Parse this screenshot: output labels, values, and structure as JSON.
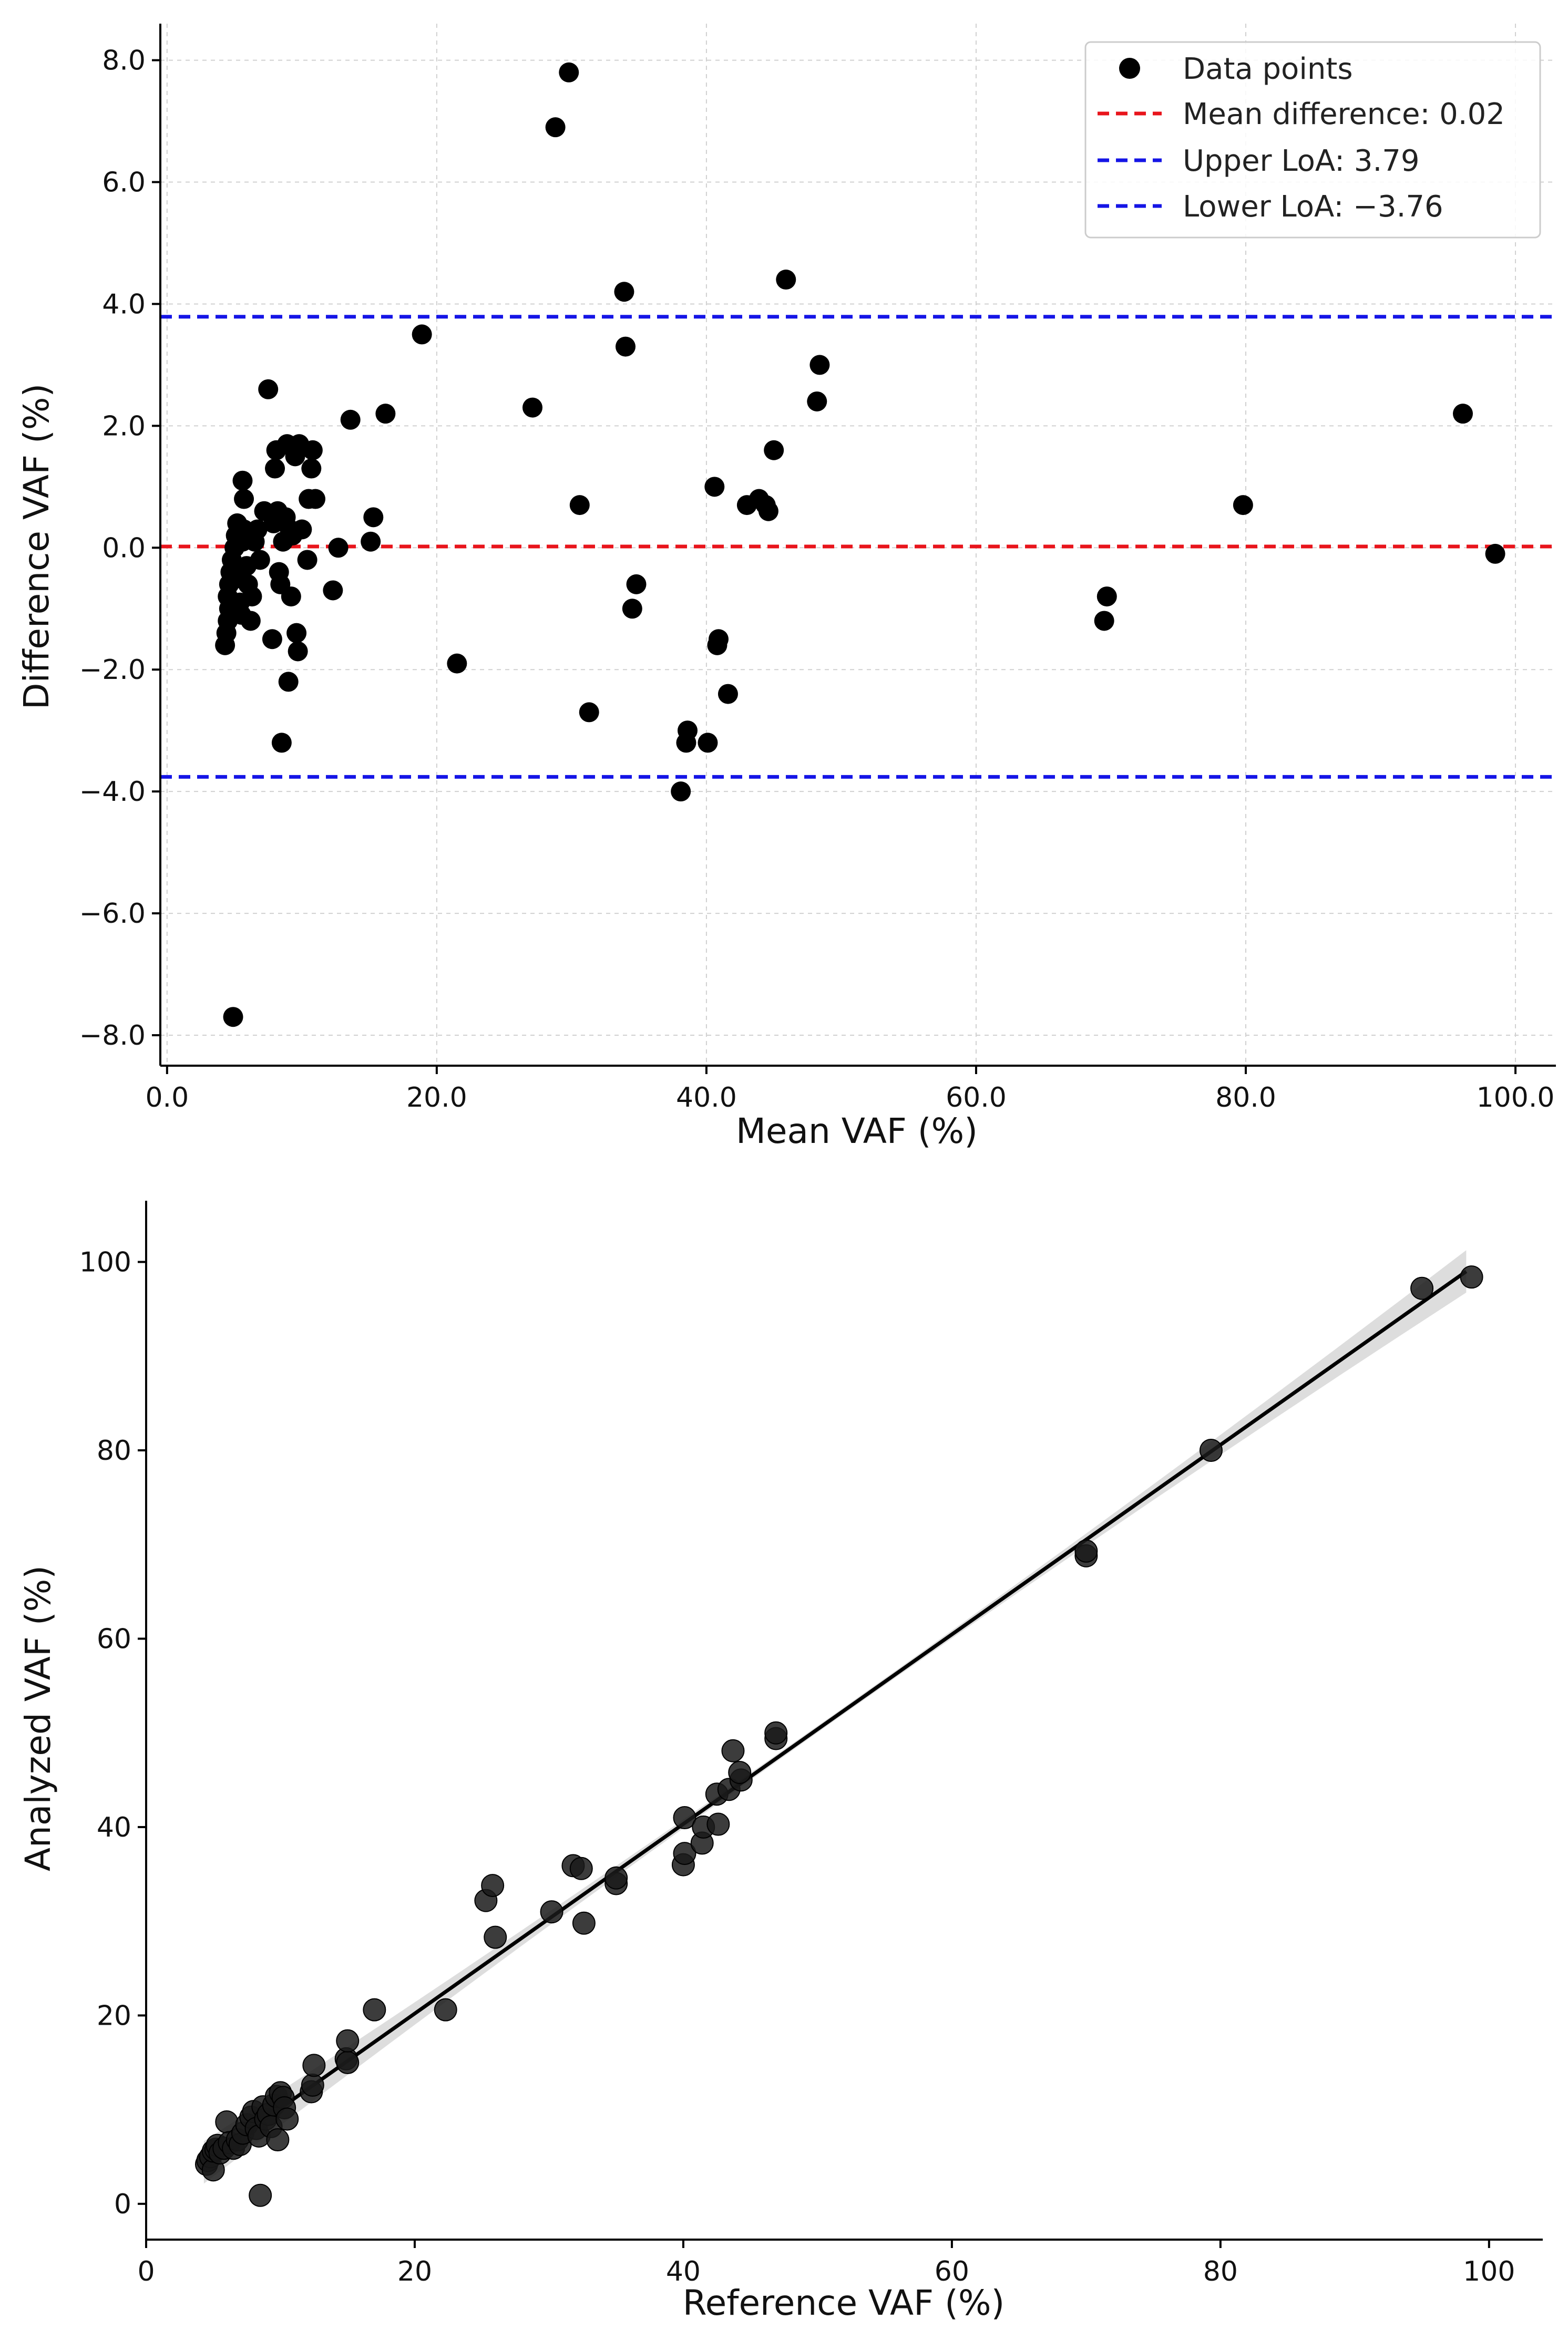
{
  "chart_data": [
    {
      "type": "scatter",
      "title": "",
      "xlabel": "Mean VAF (%)",
      "ylabel": "Difference VAF (%)",
      "xlim": [
        -0.5,
        103
      ],
      "ylim": [
        -8.5,
        8.6
      ],
      "xticks": [
        "0.0",
        "20.0",
        "40.0",
        "60.0",
        "80.0",
        "100.0"
      ],
      "yticks": [
        "−8.0",
        "−6.0",
        "−4.0",
        "−2.0",
        "0.0",
        "2.0",
        "4.0",
        "6.0",
        "8.0"
      ],
      "grid": true,
      "legend_position": "top-right",
      "legend": [
        "Data points",
        "Mean difference: 0.02",
        "Upper LoA: 3.79",
        "Lower LoA: −3.76"
      ],
      "hlines": [
        {
          "name": "Mean difference",
          "y": 0.02,
          "color": "#e8141b"
        },
        {
          "name": "Upper LoA",
          "y": 3.79,
          "color": "#1515e6"
        },
        {
          "name": "Lower LoA",
          "y": -3.76,
          "color": "#1515e6"
        }
      ],
      "series": [
        {
          "name": "Data points",
          "color": "#000000",
          "points": [
            [
              4.3,
              -1.6
            ],
            [
              4.4,
              -1.4
            ],
            [
              4.5,
              -1.2
            ],
            [
              4.6,
              -1.0
            ],
            [
              4.5,
              -0.8
            ],
            [
              4.6,
              -0.6
            ],
            [
              4.7,
              -0.4
            ],
            [
              4.8,
              -0.2
            ],
            [
              5.0,
              0.0
            ],
            [
              5.1,
              0.2
            ],
            [
              5.2,
              0.4
            ],
            [
              5.3,
              -0.5
            ],
            [
              5.4,
              -0.9
            ],
            [
              5.5,
              -1.1
            ],
            [
              5.6,
              0.1
            ],
            [
              5.7,
              0.3
            ],
            [
              5.6,
              1.1
            ],
            [
              5.7,
              0.8
            ],
            [
              5.9,
              -0.3
            ],
            [
              6.0,
              -0.6
            ],
            [
              6.2,
              -1.2
            ],
            [
              6.3,
              -0.8
            ],
            [
              6.5,
              0.1
            ],
            [
              6.7,
              0.3
            ],
            [
              6.9,
              -0.2
            ],
            [
              7.2,
              0.6
            ],
            [
              7.5,
              2.6
            ],
            [
              7.8,
              -1.5
            ],
            [
              7.9,
              0.4
            ],
            [
              8.0,
              1.3
            ],
            [
              8.1,
              1.6
            ],
            [
              8.2,
              0.6
            ],
            [
              8.3,
              -0.4
            ],
            [
              8.4,
              -0.6
            ],
            [
              8.5,
              -3.2
            ],
            [
              8.6,
              0.1
            ],
            [
              8.8,
              0.5
            ],
            [
              8.9,
              1.7
            ],
            [
              9.0,
              -2.2
            ],
            [
              9.1,
              0.3
            ],
            [
              9.2,
              -0.8
            ],
            [
              9.3,
              0.2
            ],
            [
              9.5,
              1.5
            ],
            [
              9.6,
              -1.4
            ],
            [
              9.7,
              -1.7
            ],
            [
              9.8,
              1.7
            ],
            [
              10.0,
              0.3
            ],
            [
              10.4,
              -0.2
            ],
            [
              10.5,
              0.8
            ],
            [
              10.7,
              1.3
            ],
            [
              10.8,
              1.6
            ],
            [
              11.0,
              0.8
            ],
            [
              12.3,
              -0.7
            ],
            [
              12.7,
              0.0
            ],
            [
              13.6,
              2.1
            ],
            [
              15.1,
              0.1
            ],
            [
              15.3,
              0.5
            ],
            [
              16.2,
              2.2
            ],
            [
              4.9,
              -7.7
            ],
            [
              18.9,
              3.5
            ],
            [
              21.5,
              -1.9
            ],
            [
              27.1,
              2.3
            ],
            [
              28.8,
              6.9
            ],
            [
              29.8,
              7.8
            ],
            [
              30.6,
              0.7
            ],
            [
              31.3,
              -2.7
            ],
            [
              33.9,
              4.2
            ],
            [
              34.0,
              3.3
            ],
            [
              34.5,
              -1.0
            ],
            [
              34.8,
              -0.6
            ],
            [
              38.1,
              -4.0
            ],
            [
              38.6,
              -3.0
            ],
            [
              38.5,
              -3.2
            ],
            [
              40.1,
              -3.2
            ],
            [
              40.6,
              1.0
            ],
            [
              40.9,
              -1.5
            ],
            [
              40.8,
              -1.6
            ],
            [
              41.6,
              -2.4
            ],
            [
              43.0,
              0.7
            ],
            [
              43.9,
              0.8
            ],
            [
              44.4,
              0.7
            ],
            [
              44.6,
              0.6
            ],
            [
              45.0,
              1.6
            ],
            [
              45.9,
              4.4
            ],
            [
              48.2,
              2.4
            ],
            [
              48.4,
              3.0
            ],
            [
              69.5,
              -1.2
            ],
            [
              69.7,
              -0.8
            ],
            [
              79.8,
              0.7
            ],
            [
              96.1,
              2.2
            ],
            [
              98.5,
              -0.1
            ]
          ]
        }
      ]
    },
    {
      "type": "scatter",
      "title": "",
      "xlabel": "Reference VAF (%)",
      "ylabel": "Analyzed VAF (%)",
      "xlim": [
        0,
        104
      ],
      "ylim": [
        -3.8,
        106.5
      ],
      "xticks": [
        "0",
        "20",
        "40",
        "60",
        "80",
        "100"
      ],
      "yticks": [
        "0",
        "20",
        "40",
        "60",
        "80",
        "100"
      ],
      "grid": false,
      "regression": {
        "x": [
          4.3,
          98.3
        ],
        "y": [
          4.4,
          99.0
        ],
        "color": "#000000"
      },
      "series": [
        {
          "name": "Samples",
          "color": "#1a1a1a",
          "points": [
            [
              4.5,
              4.2
            ],
            [
              4.6,
              4.6
            ],
            [
              4.8,
              5.0
            ],
            [
              5.0,
              3.6
            ],
            [
              5.0,
              5.6
            ],
            [
              5.2,
              5.8
            ],
            [
              5.3,
              6.2
            ],
            [
              5.5,
              5.4
            ],
            [
              5.8,
              5.9
            ],
            [
              6.0,
              8.7
            ],
            [
              6.2,
              6.5
            ],
            [
              6.5,
              5.9
            ],
            [
              6.8,
              6.8
            ],
            [
              7.0,
              6.3
            ],
            [
              7.2,
              7.5
            ],
            [
              7.5,
              8.4
            ],
            [
              7.8,
              9.2
            ],
            [
              8.0,
              9.8
            ],
            [
              8.2,
              8.0
            ],
            [
              8.4,
              7.2
            ],
            [
              8.5,
              0.9
            ],
            [
              8.7,
              10.3
            ],
            [
              8.9,
              9.0
            ],
            [
              9.1,
              9.5
            ],
            [
              9.3,
              8.2
            ],
            [
              9.5,
              10.5
            ],
            [
              9.7,
              11.4
            ],
            [
              9.8,
              6.8
            ],
            [
              10.0,
              11.8
            ],
            [
              10.2,
              11.3
            ],
            [
              10.3,
              10.2
            ],
            [
              10.5,
              9.0
            ],
            [
              12.3,
              11.9
            ],
            [
              12.4,
              12.6
            ],
            [
              12.5,
              14.7
            ],
            [
              14.9,
              15.4
            ],
            [
              15.0,
              15.0
            ],
            [
              15.0,
              17.3
            ],
            [
              17.0,
              20.6
            ],
            [
              22.3,
              20.6
            ],
            [
              25.3,
              32.2
            ],
            [
              25.8,
              33.8
            ],
            [
              26.0,
              28.3
            ],
            [
              30.2,
              31.0
            ],
            [
              31.8,
              35.9
            ],
            [
              32.4,
              35.6
            ],
            [
              32.6,
              29.8
            ],
            [
              35.0,
              34.0
            ],
            [
              35.0,
              34.6
            ],
            [
              40.0,
              36.0
            ],
            [
              40.1,
              37.2
            ],
            [
              40.1,
              41.0
            ],
            [
              41.4,
              38.3
            ],
            [
              41.5,
              40.0
            ],
            [
              42.6,
              40.3
            ],
            [
              42.5,
              43.5
            ],
            [
              43.4,
              44.0
            ],
            [
              43.7,
              48.1
            ],
            [
              44.3,
              45.0
            ],
            [
              44.2,
              45.8
            ],
            [
              46.9,
              49.4
            ],
            [
              46.9,
              50.0
            ],
            [
              70.0,
              68.8
            ],
            [
              70.0,
              69.3
            ],
            [
              79.3,
              80.0
            ],
            [
              95.0,
              97.2
            ],
            [
              98.7,
              98.4
            ]
          ]
        }
      ]
    }
  ]
}
